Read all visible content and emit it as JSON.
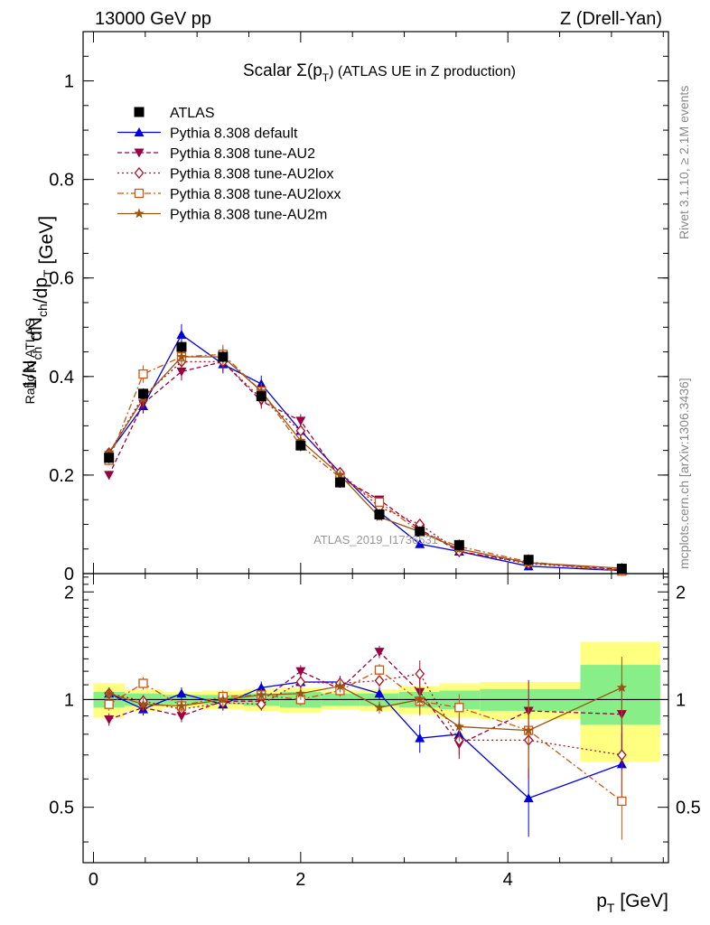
{
  "header": {
    "left": "13000 GeV pp",
    "right": "Z (Drell-Yan)"
  },
  "side_labels": {
    "rivet": "Rivet 3.1.10, ≥ 2.1M events",
    "mcplots": "mcplots.cern.ch [arXiv:1306.3436]"
  },
  "watermark": "ATLAS_2019_I1736531",
  "chart_data": [
    {
      "type": "line",
      "title": "Scalar Σ(p_T) (ATLAS UE in Z production)",
      "title_main": "Scalar Σ(p",
      "title_sub": "T",
      "title_end": ") (ATLAS UE in Z production)",
      "ylabel": "1/N_ch dN_ch/dp_T [GeV]",
      "ylim": [
        0,
        1.1
      ],
      "xlim": [
        -0.1,
        5.55
      ],
      "yticks": [
        0,
        0.2,
        0.4,
        0.6,
        0.8,
        1
      ],
      "ytick_labels": [
        "0",
        "0.2",
        "0.4",
        "0.6",
        "0.8",
        "1"
      ],
      "legend_position": "top-left",
      "x": [
        0.15,
        0.48,
        0.85,
        1.25,
        1.62,
        2.0,
        2.38,
        2.76,
        3.15,
        3.53,
        4.2,
        5.1
      ],
      "series": [
        {
          "name": "ATLAS",
          "color": "#000000",
          "marker": "square",
          "line": "none",
          "values": [
            0.235,
            0.365,
            0.46,
            0.44,
            0.36,
            0.26,
            0.185,
            0.12,
            0.085,
            0.058,
            0.028,
            0.01
          ]
        },
        {
          "name": "Pythia 8.308 default",
          "color": "#0000dd",
          "marker": "triangle-up",
          "line": "solid",
          "values": [
            0.245,
            0.34,
            0.485,
            0.425,
            0.385,
            0.29,
            0.205,
            0.125,
            0.06,
            0.045,
            0.015,
            0.006
          ]
        },
        {
          "name": "Pythia 8.308 tune-AU2",
          "color": "#990044",
          "marker": "triangle-down",
          "line": "dashed",
          "values": [
            0.2,
            0.345,
            0.41,
            0.43,
            0.35,
            0.31,
            0.195,
            0.15,
            0.09,
            0.045,
            0.022,
            0.008
          ]
        },
        {
          "name": "Pythia 8.308 tune-AU2lox",
          "color": "#aa1122",
          "marker": "diamond",
          "line": "dotted",
          "values": [
            0.245,
            0.36,
            0.43,
            0.43,
            0.355,
            0.29,
            0.205,
            0.135,
            0.1,
            0.045,
            0.02,
            0.007
          ]
        },
        {
          "name": "Pythia 8.308 tune-AU2loxx",
          "color": "#cc5511",
          "marker": "square-open",
          "line": "dashdot",
          "values": [
            0.23,
            0.405,
            0.44,
            0.445,
            0.37,
            0.26,
            0.195,
            0.145,
            0.085,
            0.055,
            0.024,
            0.005
          ]
        },
        {
          "name": "Pythia 8.308 tune-AU2m",
          "color": "#995511",
          "marker": "star",
          "line": "solid",
          "values": [
            0.245,
            0.355,
            0.44,
            0.44,
            0.37,
            0.27,
            0.2,
            0.115,
            0.085,
            0.05,
            0.022,
            0.011
          ]
        }
      ]
    },
    {
      "type": "line",
      "ylabel": "Ratio to ATLAS",
      "xlabel": "p_T [GeV]",
      "xlabel_main": "p",
      "xlabel_sub": "T",
      "xlabel_end": " [GeV]",
      "ylim": [
        0.35,
        2.25
      ],
      "yticks": [
        0.5,
        1,
        2
      ],
      "ytick_labels": [
        "0.5",
        "1",
        "2"
      ],
      "xticks": [
        0,
        2,
        4
      ],
      "xtick_labels": [
        "0",
        "2",
        "4"
      ],
      "bands": [
        {
          "x0": 0.0,
          "x1": 0.3,
          "green": [
            0.95,
            1.05
          ],
          "yellow": [
            0.89,
            1.11
          ]
        },
        {
          "x0": 0.3,
          "x1": 0.67,
          "green": [
            0.96,
            1.04
          ],
          "yellow": [
            0.93,
            1.07
          ]
        },
        {
          "x0": 0.67,
          "x1": 1.05,
          "green": [
            0.97,
            1.03
          ],
          "yellow": [
            0.95,
            1.05
          ]
        },
        {
          "x0": 1.05,
          "x1": 1.45,
          "green": [
            0.97,
            1.03
          ],
          "yellow": [
            0.94,
            1.06
          ]
        },
        {
          "x0": 1.45,
          "x1": 1.8,
          "green": [
            0.96,
            1.04
          ],
          "yellow": [
            0.93,
            1.07
          ]
        },
        {
          "x0": 1.8,
          "x1": 2.2,
          "green": [
            0.95,
            1.05
          ],
          "yellow": [
            0.92,
            1.08
          ]
        },
        {
          "x0": 2.2,
          "x1": 2.57,
          "green": [
            0.96,
            1.04
          ],
          "yellow": [
            0.94,
            1.06
          ]
        },
        {
          "x0": 2.57,
          "x1": 2.95,
          "green": [
            0.96,
            1.04
          ],
          "yellow": [
            0.93,
            1.07
          ]
        },
        {
          "x0": 2.95,
          "x1": 3.34,
          "green": [
            0.95,
            1.05
          ],
          "yellow": [
            0.91,
            1.09
          ]
        },
        {
          "x0": 3.34,
          "x1": 3.73,
          "green": [
            0.94,
            1.06
          ],
          "yellow": [
            0.89,
            1.11
          ]
        },
        {
          "x0": 3.73,
          "x1": 4.7,
          "green": [
            0.93,
            1.07
          ],
          "yellow": [
            0.88,
            1.12
          ]
        },
        {
          "x0": 4.7,
          "x1": 5.47,
          "green": [
            0.85,
            1.25
          ],
          "yellow": [
            0.67,
            1.45
          ]
        }
      ],
      "series": [
        {
          "name": "Pythia 8.308 default",
          "values": [
            1.04,
            0.94,
            1.04,
            0.97,
            1.08,
            1.12,
            1.12,
            1.04,
            0.78,
            0.8,
            0.53,
            0.66
          ]
        },
        {
          "name": "Pythia 8.308 tune-AU2",
          "values": [
            0.88,
            0.95,
            0.9,
            0.99,
            0.99,
            1.2,
            1.07,
            1.36,
            1.05,
            0.75,
            0.93,
            0.91
          ]
        },
        {
          "name": "Pythia 8.308 tune-AU2lox",
          "values": [
            1.04,
            0.99,
            0.94,
            0.98,
            0.97,
            1.12,
            1.11,
            1.13,
            1.18,
            0.77,
            0.77,
            0.7
          ]
        },
        {
          "name": "Pythia 8.308 tune-AU2loxx",
          "values": [
            0.97,
            1.11,
            0.96,
            1.02,
            1.03,
            1.0,
            1.06,
            1.21,
            0.99,
            0.95,
            0.82,
            0.52
          ]
        },
        {
          "name": "Pythia 8.308 tune-AU2m",
          "values": [
            1.04,
            0.97,
            0.96,
            1.0,
            1.03,
            1.04,
            1.09,
            0.95,
            1.0,
            0.84,
            0.82,
            1.08
          ]
        }
      ]
    }
  ]
}
